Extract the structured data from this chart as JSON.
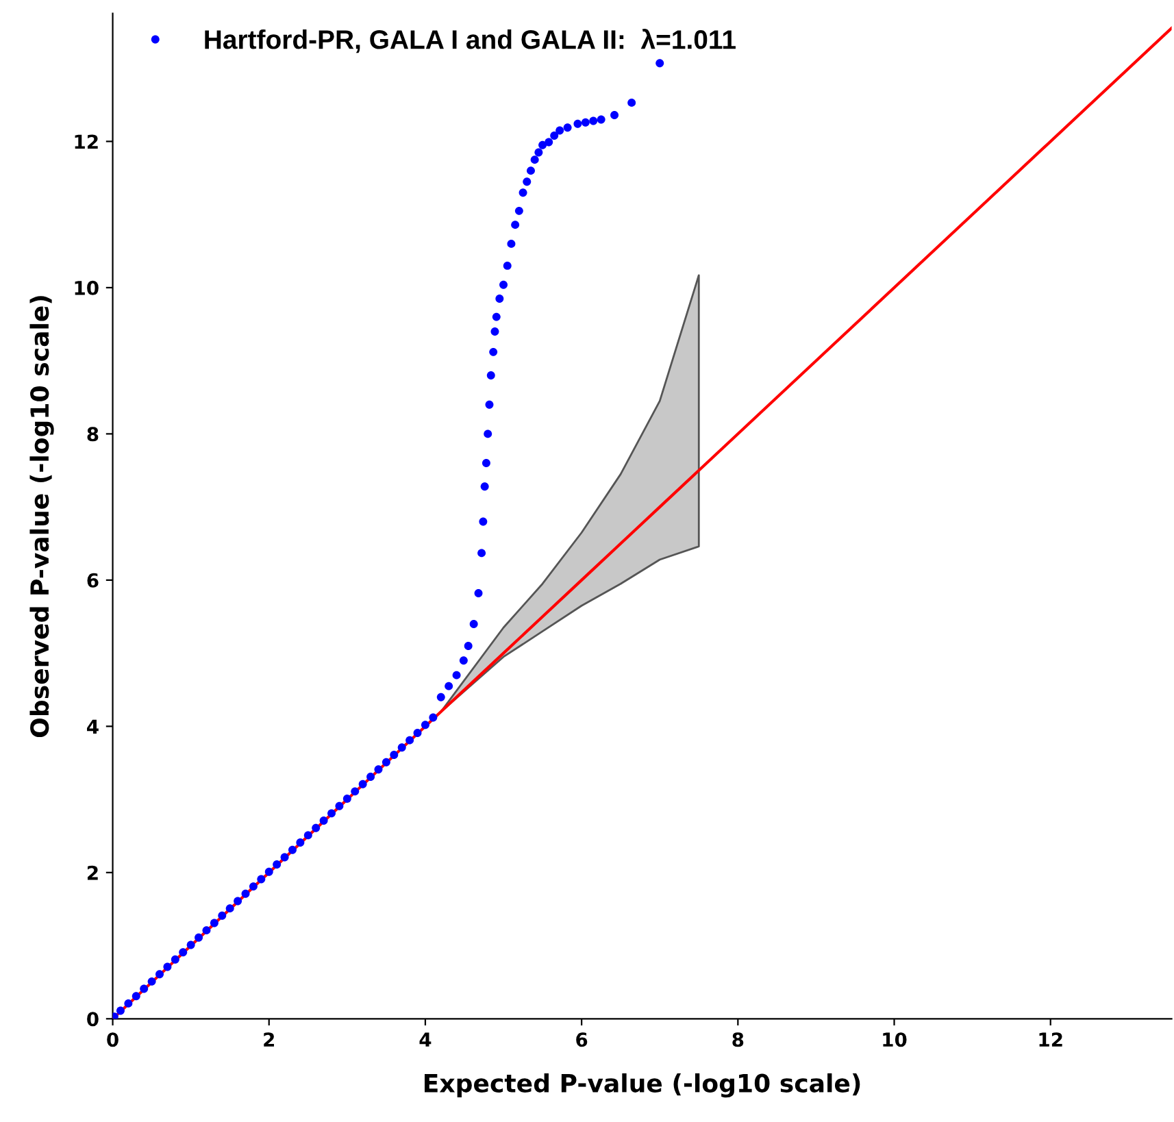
{
  "chart_data": {
    "type": "scatter",
    "xlabel": "Expected P-value (-log10 scale)",
    "ylabel": "Observed P-value (-log10 scale)",
    "xlim": [
      0,
      13.55
    ],
    "ylim": [
      0,
      13.75
    ],
    "xticks": [
      0,
      2,
      4,
      6,
      8,
      10,
      12
    ],
    "yticks": [
      0,
      2,
      4,
      6,
      8,
      10,
      12
    ],
    "legend": "top left",
    "series": [
      {
        "type": "line",
        "color": "#ff0000",
        "x": [
          0,
          4.2,
          5,
          5.5,
          6,
          6.5,
          7,
          7.5,
          13.55
        ],
        "values": [
          0,
          4.2,
          5,
          5.5,
          6,
          6.5,
          7,
          7.5,
          13.55
        ],
        "lower": [
          null,
          4.2,
          4.95,
          5.3,
          5.65,
          5.95,
          6.28,
          6.46,
          null
        ],
        "upper": [
          null,
          4.2,
          5.35,
          5.95,
          6.65,
          7.45,
          8.45,
          10.17,
          null
        ]
      },
      {
        "marker": "circle",
        "name": "Hartford-PR, GALA I and GALA II:  λ=1.011",
        "color": "#0000ff",
        "x": [
          0.02,
          0.1,
          0.2,
          0.3,
          0.4,
          0.5,
          0.6,
          0.7,
          0.8,
          0.9,
          1.0,
          1.1,
          1.2,
          1.3,
          1.4,
          1.5,
          1.6,
          1.7,
          1.8,
          1.9,
          2.0,
          2.1,
          2.2,
          2.3,
          2.4,
          2.5,
          2.6,
          2.7,
          2.8,
          2.9,
          3.0,
          3.1,
          3.2,
          3.3,
          3.4,
          3.5,
          3.6,
          3.7,
          3.8,
          3.9,
          4.0,
          4.1,
          4.2,
          4.3,
          4.4,
          4.49,
          4.55,
          4.62,
          4.68,
          4.72,
          4.74,
          4.76,
          4.78,
          4.8,
          4.82,
          4.84,
          4.87,
          4.89,
          4.91,
          4.95,
          5.0,
          5.05,
          5.1,
          5.15,
          5.2,
          5.25,
          5.3,
          5.35,
          5.4,
          5.45,
          5.5,
          5.58,
          5.65,
          5.72,
          5.82,
          5.95,
          6.05,
          6.15,
          6.25,
          6.42,
          6.64,
          7.0
        ],
        "values": [
          0.03,
          0.11,
          0.21,
          0.31,
          0.41,
          0.51,
          0.61,
          0.71,
          0.81,
          0.91,
          1.01,
          1.11,
          1.21,
          1.31,
          1.41,
          1.51,
          1.61,
          1.71,
          1.81,
          1.91,
          2.01,
          2.11,
          2.21,
          2.31,
          2.41,
          2.51,
          2.61,
          2.71,
          2.81,
          2.91,
          3.01,
          3.11,
          3.21,
          3.31,
          3.41,
          3.51,
          3.61,
          3.71,
          3.81,
          3.91,
          4.02,
          4.12,
          4.4,
          4.55,
          4.7,
          4.9,
          5.1,
          5.4,
          5.82,
          6.37,
          6.8,
          7.28,
          7.6,
          8.0,
          8.4,
          8.8,
          9.12,
          9.4,
          9.6,
          9.85,
          10.04,
          10.3,
          10.6,
          10.86,
          11.05,
          11.3,
          11.45,
          11.6,
          11.75,
          11.85,
          11.95,
          11.99,
          12.08,
          12.15,
          12.19,
          12.24,
          12.26,
          12.28,
          12.3,
          12.36,
          12.53,
          13.07
        ]
      }
    ]
  }
}
